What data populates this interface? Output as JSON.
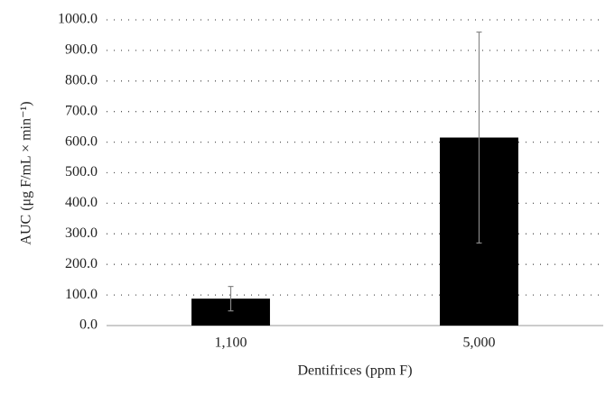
{
  "chart_data": {
    "type": "bar",
    "x_label": "Dentifrices (ppm F)",
    "y_label": "AUC (μg F/mL × min⁻¹)",
    "categories": [
      "1,100",
      "5,000"
    ],
    "values": [
      88,
      615
    ],
    "errors": [
      40,
      345
    ],
    "color": "#000000",
    "ylim": [
      0,
      1000
    ],
    "yticks": [
      {
        "value": 0,
        "label": "0.0"
      },
      {
        "value": 100,
        "label": "100.0"
      },
      {
        "value": 200,
        "label": "200.0"
      },
      {
        "value": 300,
        "label": "300.0"
      },
      {
        "value": 400,
        "label": "400.0"
      },
      {
        "value": 500,
        "label": "500.0"
      },
      {
        "value": 600,
        "label": "600.0"
      },
      {
        "value": 700,
        "label": "700.0"
      },
      {
        "value": 800,
        "label": "800.0"
      },
      {
        "value": 900,
        "label": "900.0"
      },
      {
        "value": 1000,
        "label": "1000.0"
      }
    ],
    "grid": true
  }
}
